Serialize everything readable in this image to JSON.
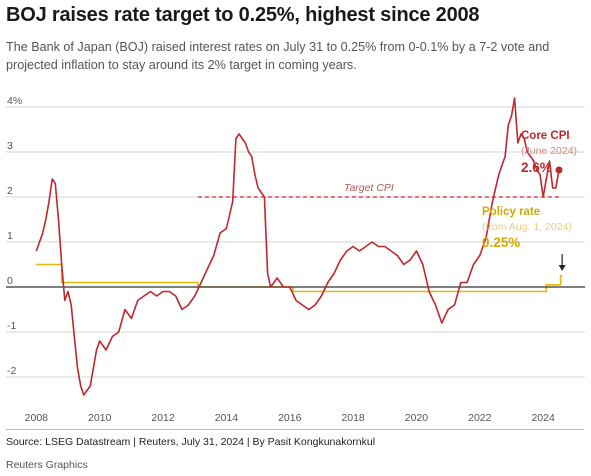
{
  "header": {
    "title": "BOJ raises rate target to 0.25%, highest since 2008",
    "subtitle": "The Bank of Japan (BOJ) raised interest rates on July 31 to 0.25% from 0-0.1% by a 7-2 vote and projected inflation to stay around its 2% target in coming years."
  },
  "footer": {
    "source": "Source: LSEG Datastream | Reuters, July 31, 2024 | By Pasit Kongkunakornkul",
    "credit": "Reuters Graphics"
  },
  "colors": {
    "cpi": "#c0272d",
    "policy": "#e2b80a",
    "grid": "#d6d6d6",
    "zero": "#333333",
    "target_label": "#b05555",
    "muted_red": "#d18a8a",
    "muted_gold": "#e3cf7c",
    "text": "#555555"
  },
  "chart_data": {
    "type": "line",
    "title": "",
    "xlabel": "",
    "ylabel": "",
    "xlim": [
      2007.8,
      2025.1
    ],
    "ylim": [
      -2.4,
      4.2
    ],
    "grid": true,
    "y_ticks": [
      {
        "value": 4,
        "label": "4%"
      },
      {
        "value": 3,
        "label": "3"
      },
      {
        "value": 2,
        "label": "2"
      },
      {
        "value": 1,
        "label": "1"
      },
      {
        "value": 0,
        "label": "0"
      },
      {
        "value": -1,
        "label": "-1"
      },
      {
        "value": -2,
        "label": "-2"
      }
    ],
    "x_ticks": [
      {
        "value": 2008,
        "label": "2008"
      },
      {
        "value": 2010,
        "label": "2010"
      },
      {
        "value": 2012,
        "label": "2012"
      },
      {
        "value": 2014,
        "label": "2014"
      },
      {
        "value": 2016,
        "label": "2016"
      },
      {
        "value": 2018,
        "label": "2018"
      },
      {
        "value": 2020,
        "label": "2020"
      },
      {
        "value": 2022,
        "label": "2022"
      },
      {
        "value": 2024,
        "label": "2024"
      }
    ],
    "target": {
      "value": 2,
      "label": "Target CPI",
      "x_start": 2013.1,
      "x_end": 2024.5
    },
    "series": [
      {
        "name": "Core CPI",
        "note": "(June 2024)",
        "last_label": "2.6%",
        "color": "#c0272d",
        "x": [
          2008.0,
          2008.1,
          2008.2,
          2008.3,
          2008.4,
          2008.5,
          2008.6,
          2008.7,
          2008.8,
          2008.9,
          2009.0,
          2009.1,
          2009.2,
          2009.3,
          2009.4,
          2009.5,
          2009.6,
          2009.7,
          2009.8,
          2009.9,
          2010.0,
          2010.2,
          2010.4,
          2010.6,
          2010.8,
          2011.0,
          2011.2,
          2011.4,
          2011.6,
          2011.8,
          2012.0,
          2012.2,
          2012.4,
          2012.6,
          2012.8,
          2013.0,
          2013.2,
          2013.4,
          2013.6,
          2013.8,
          2014.0,
          2014.2,
          2014.3,
          2014.4,
          2014.5,
          2014.6,
          2014.7,
          2014.8,
          2014.9,
          2015.0,
          2015.2,
          2015.3,
          2015.4,
          2015.6,
          2015.8,
          2016.0,
          2016.2,
          2016.4,
          2016.6,
          2016.8,
          2017.0,
          2017.2,
          2017.4,
          2017.6,
          2017.8,
          2018.0,
          2018.2,
          2018.4,
          2018.6,
          2018.8,
          2019.0,
          2019.2,
          2019.4,
          2019.6,
          2019.8,
          2020.0,
          2020.2,
          2020.4,
          2020.6,
          2020.8,
          2021.0,
          2021.2,
          2021.4,
          2021.6,
          2021.8,
          2022.0,
          2022.2,
          2022.4,
          2022.6,
          2022.8,
          2022.9,
          2023.0,
          2023.1,
          2023.2,
          2023.3,
          2023.4,
          2023.5,
          2023.6,
          2023.7,
          2023.8,
          2023.9,
          2024.0,
          2024.1,
          2024.2,
          2024.3,
          2024.4,
          2024.5
        ],
        "values": [
          0.8,
          1.0,
          1.2,
          1.5,
          1.9,
          2.4,
          2.3,
          1.5,
          0.5,
          -0.3,
          -0.1,
          -0.4,
          -1.1,
          -1.8,
          -2.2,
          -2.4,
          -2.3,
          -2.2,
          -1.8,
          -1.4,
          -1.2,
          -1.4,
          -1.1,
          -1.0,
          -0.5,
          -0.7,
          -0.3,
          -0.2,
          -0.1,
          -0.2,
          -0.1,
          -0.1,
          -0.2,
          -0.5,
          -0.4,
          -0.2,
          0.1,
          0.4,
          0.7,
          1.2,
          1.3,
          1.9,
          3.3,
          3.4,
          3.3,
          3.2,
          3.0,
          2.9,
          2.5,
          2.2,
          2.0,
          0.3,
          0.0,
          0.2,
          0.0,
          0.0,
          -0.3,
          -0.4,
          -0.5,
          -0.4,
          -0.2,
          0.1,
          0.3,
          0.6,
          0.8,
          0.9,
          0.8,
          0.9,
          1.0,
          0.9,
          0.9,
          0.8,
          0.7,
          0.5,
          0.6,
          0.8,
          0.5,
          -0.1,
          -0.4,
          -0.8,
          -0.5,
          -0.4,
          0.1,
          0.1,
          0.5,
          0.7,
          1.1,
          1.9,
          2.5,
          2.9,
          3.6,
          3.8,
          4.2,
          3.2,
          3.4,
          3.3,
          3.0,
          2.9,
          2.8,
          2.6,
          2.5,
          2.0,
          2.4,
          2.8,
          2.2,
          2.2,
          2.6
        ]
      },
      {
        "name": "Policy rate",
        "note": "(from Aug. 1, 2024)",
        "last_label": "0.25%",
        "color": "#e2b80a",
        "x": [
          2008.0,
          2008.8,
          2008.8,
          2013.1,
          2013.1,
          2016.1,
          2016.1,
          2024.1,
          2024.1,
          2024.55,
          2024.55,
          2024.6
        ],
        "values": [
          0.5,
          0.5,
          0.1,
          0.1,
          0.0,
          0.0,
          -0.1,
          -0.1,
          0.05,
          0.05,
          0.25,
          0.25
        ]
      }
    ]
  }
}
